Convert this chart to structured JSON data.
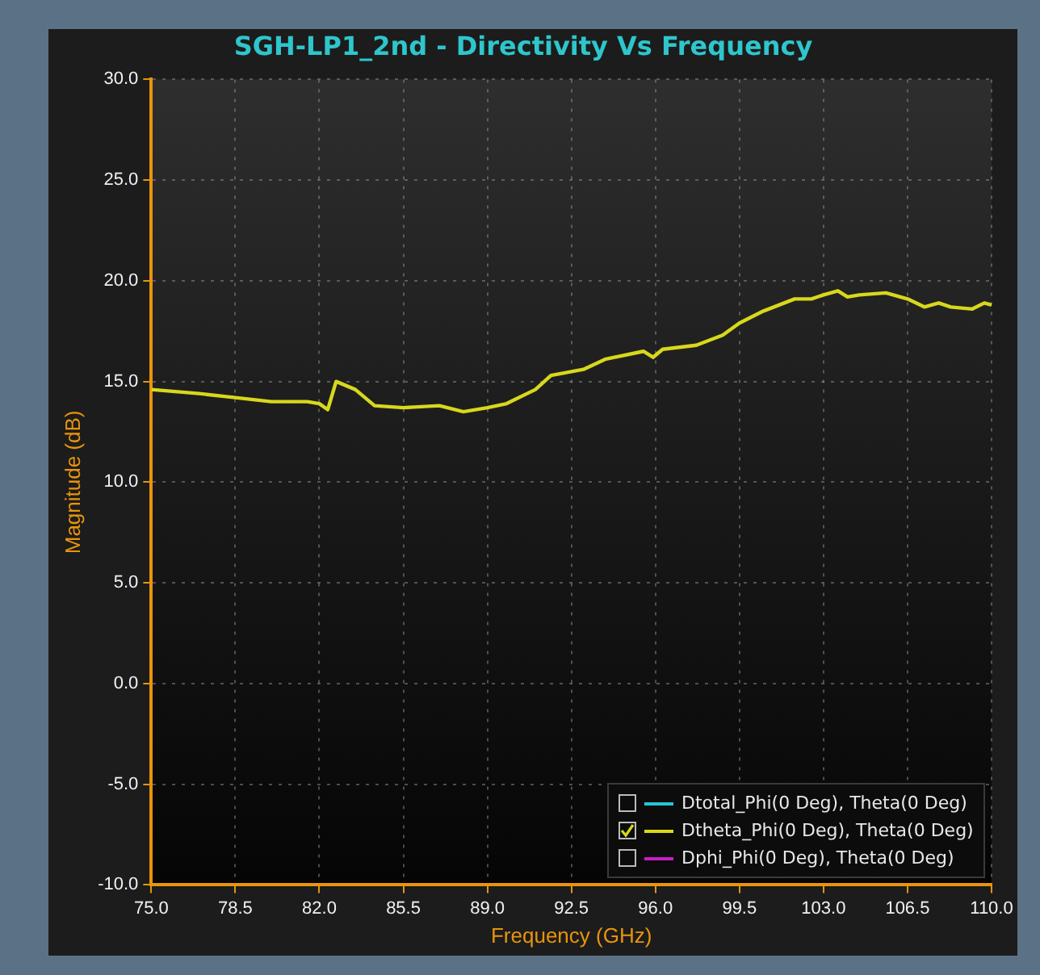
{
  "chart_data": {
    "type": "line",
    "title": "SGH-LP1_2nd - Directivity Vs Frequency",
    "xlabel": "Frequency (GHz)",
    "ylabel": "Magnitude (dB)",
    "xlim": [
      75,
      110
    ],
    "xticks": [
      {
        "value": 75,
        "label": "75.0"
      },
      {
        "value": 78.5,
        "label": "78.5"
      },
      {
        "value": 82,
        "label": "82.0"
      },
      {
        "value": 85.5,
        "label": "85.5"
      },
      {
        "value": 89,
        "label": "89.0"
      },
      {
        "value": 92.5,
        "label": "92.5"
      },
      {
        "value": 96,
        "label": "96.0"
      },
      {
        "value": 99.5,
        "label": "99.5"
      },
      {
        "value": 103,
        "label": "103.0"
      },
      {
        "value": 106.5,
        "label": "106.5"
      },
      {
        "value": 110,
        "label": "110.0"
      }
    ],
    "ylim": [
      -10,
      30
    ],
    "yticks": [
      {
        "value": -10,
        "label": "-10.0"
      },
      {
        "value": -5,
        "label": "-5.0"
      },
      {
        "value": 0,
        "label": "0.0"
      },
      {
        "value": 5,
        "label": "5.0"
      },
      {
        "value": 10,
        "label": "10.0"
      },
      {
        "value": 15,
        "label": "15.0"
      },
      {
        "value": 20,
        "label": "20.0"
      },
      {
        "value": 25,
        "label": "25.0"
      },
      {
        "value": 30,
        "label": "30.0"
      }
    ],
    "grid": true,
    "legend": "bottom right",
    "marker": "none",
    "line_style": "solid",
    "x": [
      75,
      76,
      77,
      78.5,
      80,
      81.5,
      82,
      82.35,
      82.7,
      83.5,
      84.3,
      85.5,
      87,
      88,
      89,
      89.8,
      91,
      91.65,
      93,
      93.9,
      95.5,
      95.9,
      96.3,
      97.7,
      98.8,
      99.5,
      100.5,
      101.8,
      102.5,
      103,
      103.6,
      104,
      104.5,
      105.6,
      106.5,
      107.2,
      107.8,
      108.3,
      109.2,
      109.7,
      110
    ],
    "series": [
      {
        "name": "Dtotal_Phi(0 Deg), Theta(0 Deg)",
        "color": "#22c8d8",
        "values": [
          null,
          null,
          null,
          null,
          null,
          null,
          null,
          null,
          null,
          null,
          null,
          null,
          null,
          null,
          null,
          null,
          null,
          null,
          null,
          null,
          null,
          null,
          null,
          null,
          null,
          null,
          null,
          null,
          null,
          null,
          null,
          null,
          null,
          null,
          null,
          null,
          null,
          null,
          null,
          null,
          null
        ]
      },
      {
        "name": "Dtheta_Phi(0 Deg), Theta(0 Deg)",
        "color": "#d8d81c",
        "values": [
          14.6,
          14.5,
          14.4,
          14.2,
          14.0,
          14.0,
          13.9,
          13.6,
          15.0,
          14.6,
          13.8,
          13.7,
          13.8,
          13.5,
          13.7,
          13.9,
          14.6,
          15.3,
          15.6,
          16.1,
          16.5,
          16.2,
          16.6,
          16.8,
          17.3,
          17.9,
          18.5,
          19.1,
          19.1,
          19.3,
          19.5,
          19.2,
          19.3,
          19.4,
          19.1,
          18.7,
          18.9,
          18.7,
          18.6,
          18.9,
          18.8
        ]
      },
      {
        "name": "Dphi_Phi(0 Deg), Theta(0 Deg)",
        "color": "#c81ec8",
        "values": [
          null,
          null,
          null,
          null,
          null,
          null,
          null,
          null,
          null,
          null,
          null,
          null,
          null,
          null,
          null,
          null,
          null,
          null,
          null,
          null,
          null,
          null,
          null,
          null,
          null,
          null,
          null,
          null,
          null,
          null,
          null,
          null,
          null,
          null,
          null,
          null,
          null,
          null,
          null,
          null,
          null
        ]
      }
    ]
  }
}
